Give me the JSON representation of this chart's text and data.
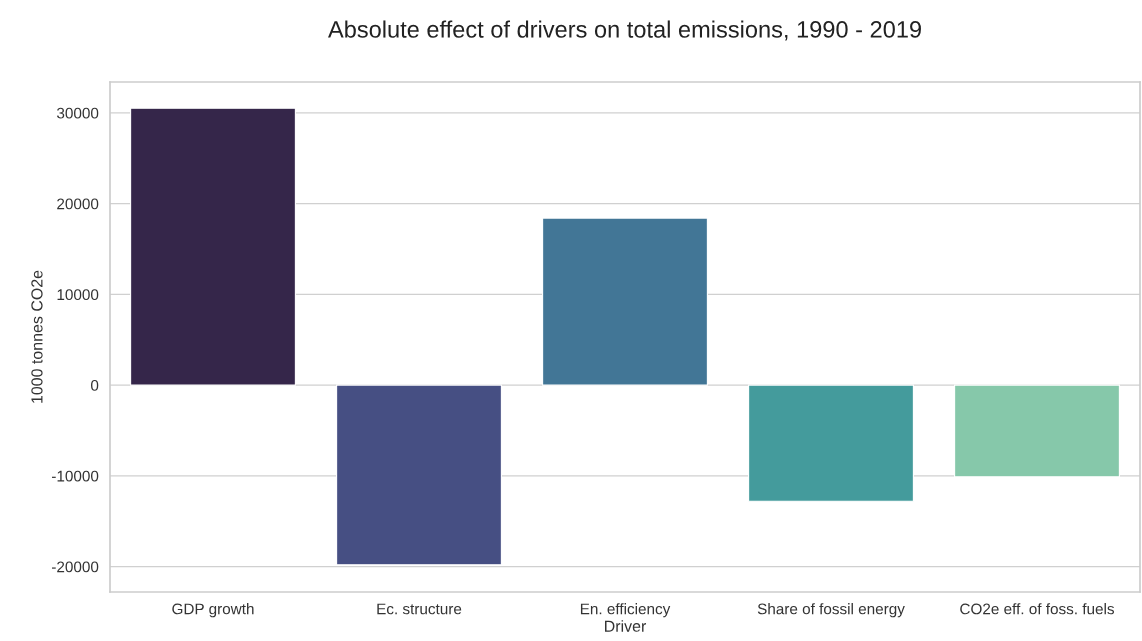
{
  "chart_data": {
    "type": "bar",
    "title": "Absolute effect of drivers on total emissions, 1990 - 2019",
    "xlabel": "Driver",
    "ylabel": "1000 tonnes CO2e",
    "categories": [
      "GDP growth",
      "Ec. structure",
      "En. efficiency",
      "Share of fossil energy",
      "CO2e eff. of foss. fuels"
    ],
    "values": [
      30500,
      -19800,
      18400,
      -12800,
      -10100
    ],
    "colors": [
      "#35264a",
      "#464f83",
      "#427696",
      "#449b9c",
      "#86c8aa"
    ],
    "ylim": [
      -22800,
      33400
    ],
    "yticks": [
      -20000,
      -10000,
      0,
      10000,
      20000,
      30000
    ],
    "grid": "y"
  }
}
